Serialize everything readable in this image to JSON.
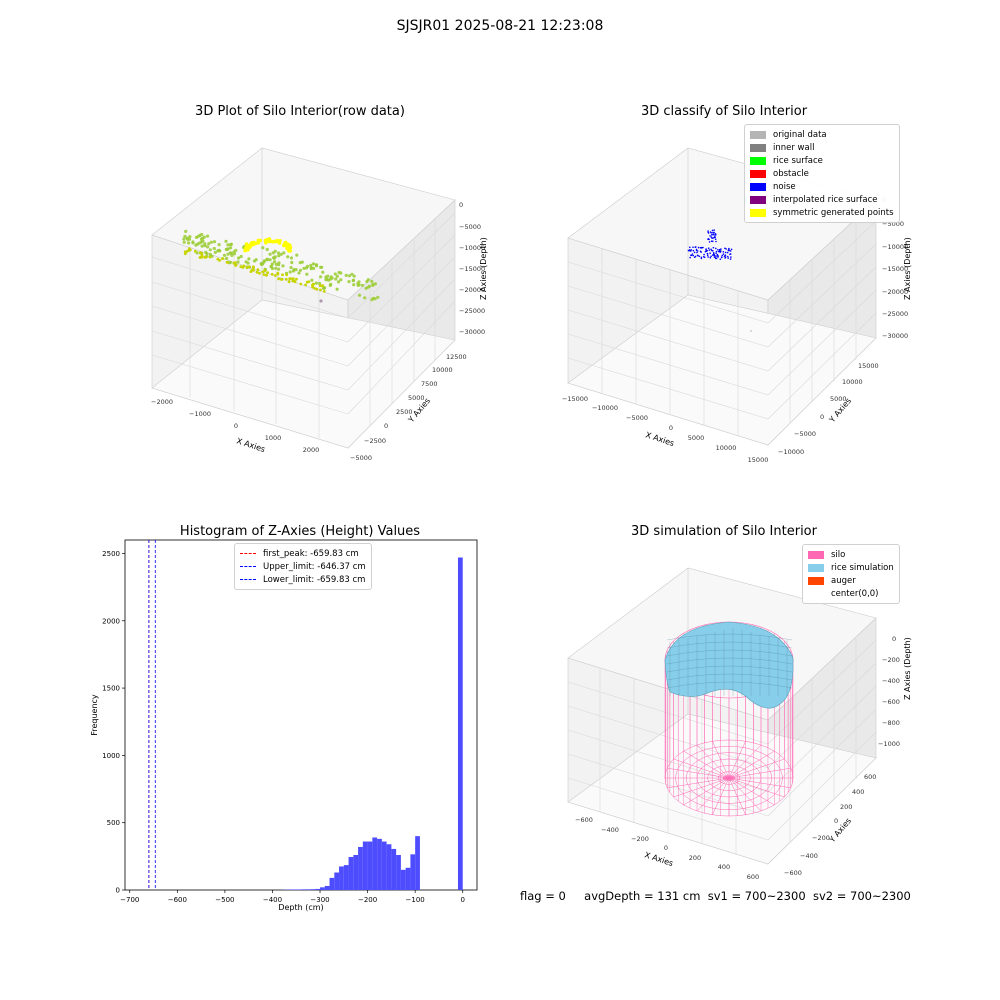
{
  "suptitle": "SJSJR01 2025-08-21 12:23:08",
  "colors": {
    "original_data": "#b4b4b4",
    "inner_wall": "#808080",
    "rice_surface": "#00ff00",
    "obstacle": "#ff0000",
    "noise": "#0000ff",
    "interpolated_rice_surface": "#800080",
    "symmetric_generated_points": "#ffff00",
    "silo": "#ff69b4",
    "rice_simulation": "#87ceeb",
    "auger": "#ff4500",
    "histogram_bar": "#4d4dff"
  },
  "chart_data": [
    {
      "type": "scatter",
      "title": "3D Plot of Silo Interior(row data)",
      "xlabel": "X Axies",
      "ylabel": "Y Axies",
      "zlabel": "Z Axies (Depth)",
      "xticks": [
        "−2000",
        "−1000",
        "0",
        "1000",
        "2000"
      ],
      "yticks": [
        "−5000",
        "−2500",
        "0",
        "2500",
        "5000",
        "7500",
        "10000",
        "12500"
      ],
      "zticks": [
        "0",
        "−5000",
        "−10000",
        "−15000",
        "−20000",
        "−25000",
        "−30000"
      ],
      "grid": true
    },
    {
      "type": "scatter",
      "title": "3D classify of Silo Interior",
      "xlabel": "X Axies",
      "ylabel": "Y Axies",
      "zlabel": "Z Axies (Depth)",
      "xticks": [
        "−15000",
        "−10000",
        "−5000",
        "0",
        "5000",
        "10000",
        "15000"
      ],
      "yticks": [
        "−10000",
        "−5000",
        "0",
        "5000",
        "10000",
        "15000"
      ],
      "zticks": [
        "0",
        "−5000",
        "−10000",
        "−15000",
        "−20000",
        "−25000",
        "−30000"
      ],
      "legend": [
        "original data",
        "inner wall",
        "rice surface",
        "obstacle",
        "noise",
        "interpolated rice surface",
        "symmetric generated points"
      ],
      "legend_placement": "top-right",
      "grid": true
    },
    {
      "type": "bar",
      "title": "Histogram of Z-Axies (Height) Values",
      "xlabel": "Depth (cm)",
      "ylabel": "Frequency",
      "xlim": [
        -710,
        30
      ],
      "ylim": [
        0,
        2600
      ],
      "xticks": [
        -700,
        -600,
        -500,
        -400,
        -300,
        -200,
        -100,
        0
      ],
      "yticks": [
        0,
        500,
        1000,
        1500,
        2000,
        2500
      ],
      "bin_width": 10,
      "bins": [
        [
          -380,
          2
        ],
        [
          -370,
          3
        ],
        [
          -360,
          4
        ],
        [
          -350,
          4
        ],
        [
          -340,
          5
        ],
        [
          -330,
          5
        ],
        [
          -320,
          6
        ],
        [
          -310,
          8
        ],
        [
          -300,
          20
        ],
        [
          -290,
          30
        ],
        [
          -280,
          90
        ],
        [
          -270,
          130
        ],
        [
          -260,
          175
        ],
        [
          -250,
          185
        ],
        [
          -240,
          245
        ],
        [
          -230,
          260
        ],
        [
          -220,
          320
        ],
        [
          -210,
          360
        ],
        [
          -200,
          360
        ],
        [
          -190,
          390
        ],
        [
          -180,
          380
        ],
        [
          -170,
          360
        ],
        [
          -160,
          340
        ],
        [
          -150,
          305
        ],
        [
          -140,
          260
        ],
        [
          -130,
          150
        ],
        [
          -120,
          165
        ],
        [
          -110,
          265
        ],
        [
          -100,
          400
        ],
        [
          -10,
          2470
        ]
      ],
      "vlines": [
        {
          "label": "first_peak: -659.83 cm",
          "x": -659.83,
          "color": "#ff0000"
        },
        {
          "label": "Upper_limit: -646.37 cm",
          "x": -646.37,
          "color": "#0000ff"
        },
        {
          "label": "Lower_limit: -659.83 cm",
          "x": -659.83,
          "color": "#0000ff"
        }
      ],
      "legend_placement": "upper-center",
      "grid": false
    },
    {
      "type": "area",
      "title": "3D simulation of Silo Interior",
      "xlabel": "X Axies",
      "ylabel": "Y Axies",
      "zlabel": "Z Axies (Depth)",
      "xticks": [
        "−600",
        "−400",
        "−200",
        "0",
        "200",
        "400",
        "600"
      ],
      "yticks": [
        "−600",
        "−400",
        "−200",
        "0",
        "200",
        "400",
        "600"
      ],
      "zticks": [
        "0",
        "−200",
        "−400",
        "−600",
        "−800",
        "−1000"
      ],
      "legend": [
        "silo",
        "rice simulation",
        "auger",
        "center(0,0)"
      ],
      "legend_placement": "top-right",
      "grid": true
    }
  ],
  "footer": {
    "flag": "flag = 0",
    "avg": "avgDepth = 131 cm",
    "sv1": "sv1 = 700~2300",
    "sv2": "sv2 = 700~2300"
  }
}
